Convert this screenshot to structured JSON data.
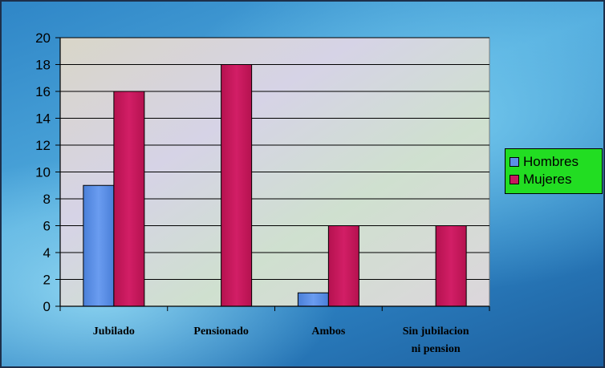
{
  "chart_data": {
    "type": "bar",
    "categories": [
      [
        "Jubilado"
      ],
      [
        "Pensionado"
      ],
      [
        "Ambos"
      ],
      [
        "Sin jubilacion",
        "ni pension"
      ]
    ],
    "series": [
      {
        "name": "Hombres",
        "color": "#5b8fe6",
        "values": [
          9,
          0,
          1,
          0
        ]
      },
      {
        "name": "Mujeres",
        "color": "#c8185e",
        "values": [
          16,
          18,
          6,
          6
        ]
      }
    ],
    "yticks": [
      "0",
      "2",
      "4",
      "6",
      "8",
      "10",
      "12",
      "14",
      "16",
      "18",
      "20"
    ],
    "ylim": [
      0,
      20
    ],
    "grid": true,
    "legend_position": "right"
  }
}
